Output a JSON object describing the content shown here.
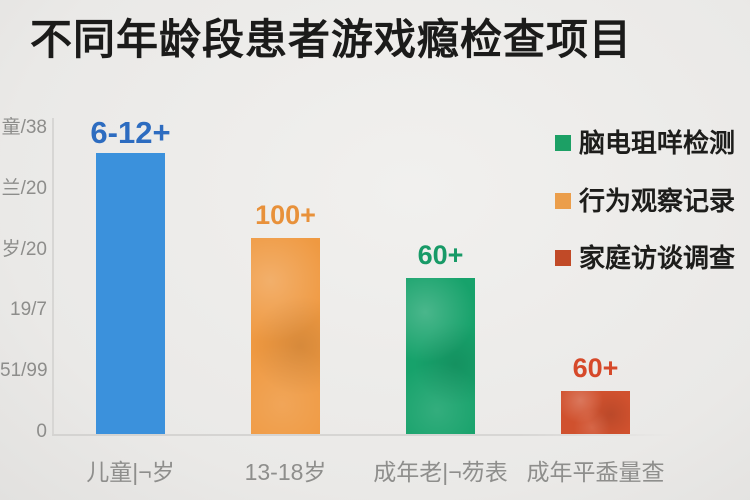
{
  "title": "不同年龄段患者游戏瘾检查项目",
  "chart_data": {
    "type": "bar",
    "title": "不同年龄段患者游戏瘾检查项目",
    "categories": [
      "儿童|¬岁",
      "13-18岁",
      "成年老|¬芴表",
      "成年平盉量查"
    ],
    "values": [
      230,
      161,
      128,
      35
    ],
    "bar_labels": [
      "6-12+",
      "100+",
      "60+",
      "60+"
    ],
    "bar_colors": [
      "#3b91dc",
      "#ef9941",
      "#17a26b",
      "#d0512e"
    ],
    "bar_label_colors": [
      "#2d6cc0",
      "#e8913a",
      "#189a67",
      "#d6492a"
    ],
    "bar_textured": [
      false,
      true,
      true,
      true
    ],
    "y_tick_labels_top_to_bottom": [
      "童/38",
      "兰/20",
      "岁/20",
      "19/7",
      "51/99",
      "0"
    ],
    "ylim": [
      0,
      250
    ],
    "grid": false,
    "xlabel": "",
    "ylabel": "",
    "legend_position": "right",
    "legend": [
      {
        "label": "脑电珇咩检测",
        "color": "#1ca065"
      },
      {
        "label": "行为观察记录",
        "color": "#eb9e4b"
      },
      {
        "label": "家庭访谈调查",
        "color": "#c14a27"
      }
    ]
  },
  "colors": {
    "background": "#ebeae8",
    "axis": "#d7d6d4",
    "tick_text": "#8d8d8b",
    "title_text": "#1b1b1a",
    "legend_text": "#1d1d1b"
  }
}
